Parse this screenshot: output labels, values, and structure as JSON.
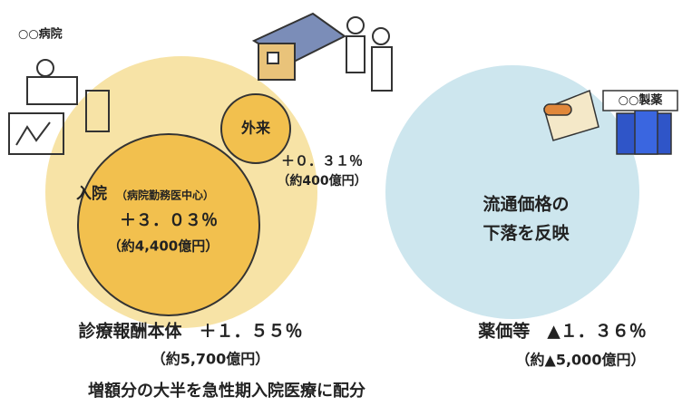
{
  "hospital": {
    "label": "○○病院"
  },
  "outpatient": {
    "label": "外来",
    "rate": "＋０．３１％",
    "amount": "（約400億円）"
  },
  "inpatient": {
    "label": "入院",
    "note": "（病院勤務医中心）",
    "rate": "＋３．０３％",
    "amount": "（約4,400億円）"
  },
  "main_fee": {
    "label": "診療報酬本体　＋１．５５％",
    "amount": "（約5,700億円）",
    "note": "増額分の大半を急性期入院医療に配分"
  },
  "pharma": {
    "company": "○○製薬",
    "reason": [
      "流通価格の",
      "下落を反映"
    ],
    "label": "薬価等　▲１．３６％",
    "amount": "（約▲5,000億円）"
  }
}
